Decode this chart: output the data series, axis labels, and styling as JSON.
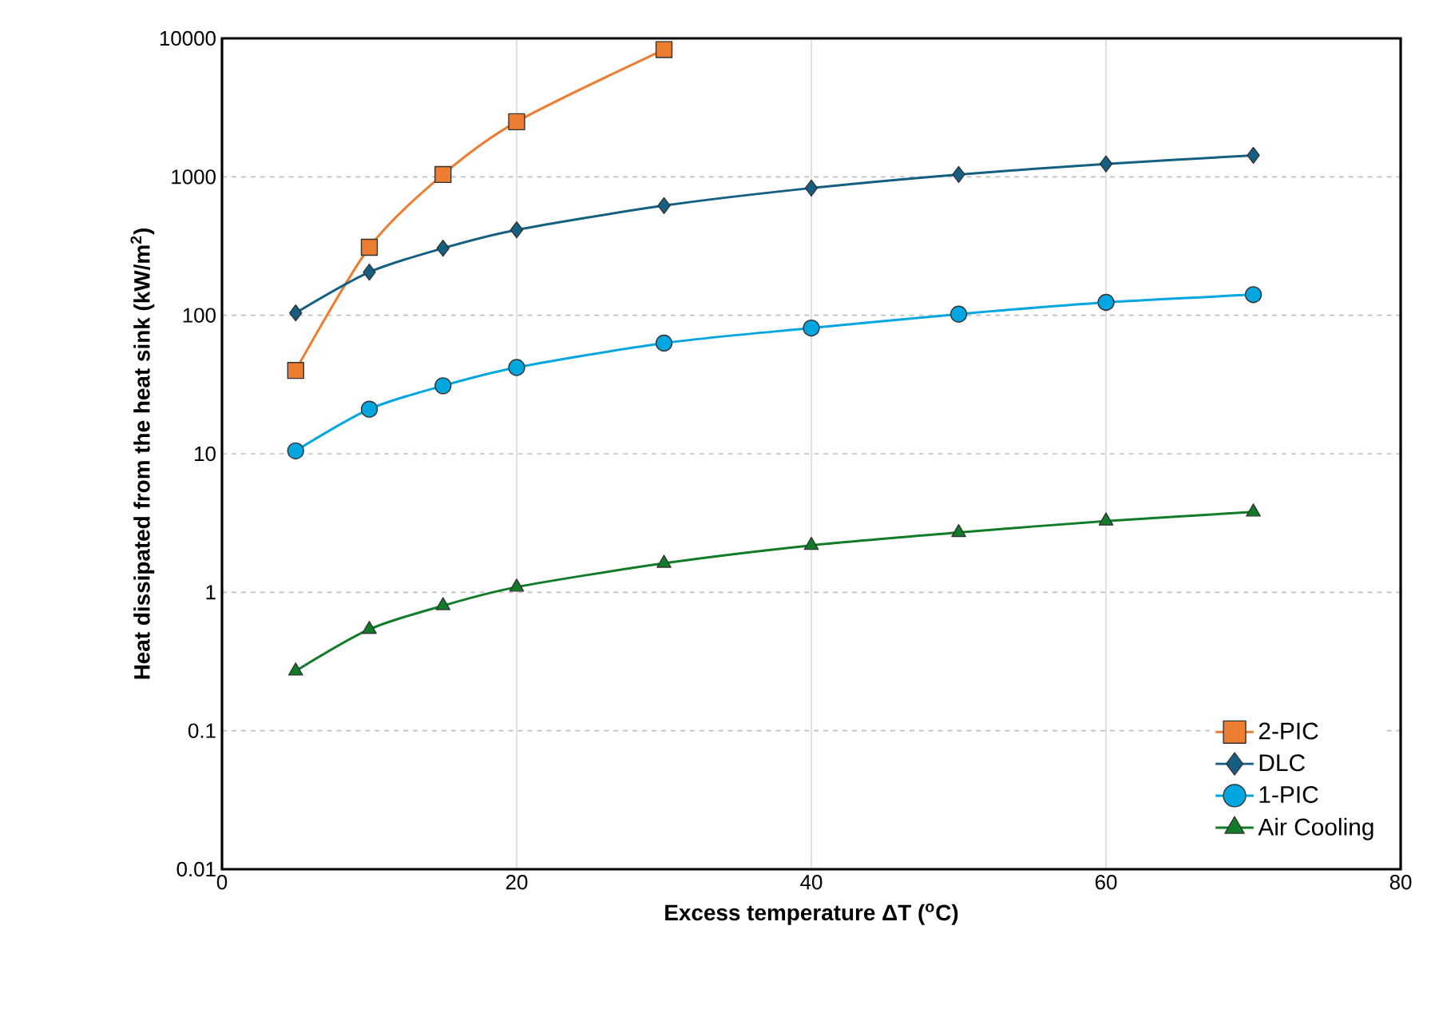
{
  "chart_data": {
    "type": "line",
    "xlabel": "Excess temperature ΔT ($^{o}$C)",
    "ylabel": "Heat dissipated  from the heat sink (kW/m$^{2}$)",
    "x": [
      5,
      10,
      15,
      20,
      30,
      40,
      50,
      60,
      70
    ],
    "series": [
      {
        "name": "2-PIC",
        "color": "#ed7d31",
        "marker": "square",
        "x": [
          5,
          10,
          15,
          20,
          30
        ],
        "values": [
          40,
          310,
          1040,
          2500,
          8300
        ]
      },
      {
        "name": "DLC",
        "color": "#156082",
        "marker": "diamond",
        "values": [
          104,
          205,
          305,
          414,
          620,
          830,
          1040,
          1240,
          1430
        ]
      },
      {
        "name": "1-PIC",
        "color": "#00a6e0",
        "marker": "circle",
        "values": [
          10.5,
          21,
          31,
          42,
          63,
          81,
          102,
          124,
          141
        ]
      },
      {
        "name": "Air Cooling",
        "color": "#107c28",
        "marker": "triangle",
        "values": [
          0.27,
          0.54,
          0.8,
          1.09,
          1.62,
          2.18,
          2.7,
          3.27,
          3.8
        ]
      }
    ],
    "log": "y",
    "xlim": [
      0,
      80
    ],
    "xticks": [
      0,
      20,
      40,
      60,
      80
    ],
    "ylim": [
      0.01,
      10000
    ],
    "yticks": [
      0.01,
      0.1,
      1,
      10,
      100,
      1000,
      10000
    ],
    "grid": true,
    "legend": "bottom right",
    "line_style": "solid"
  }
}
